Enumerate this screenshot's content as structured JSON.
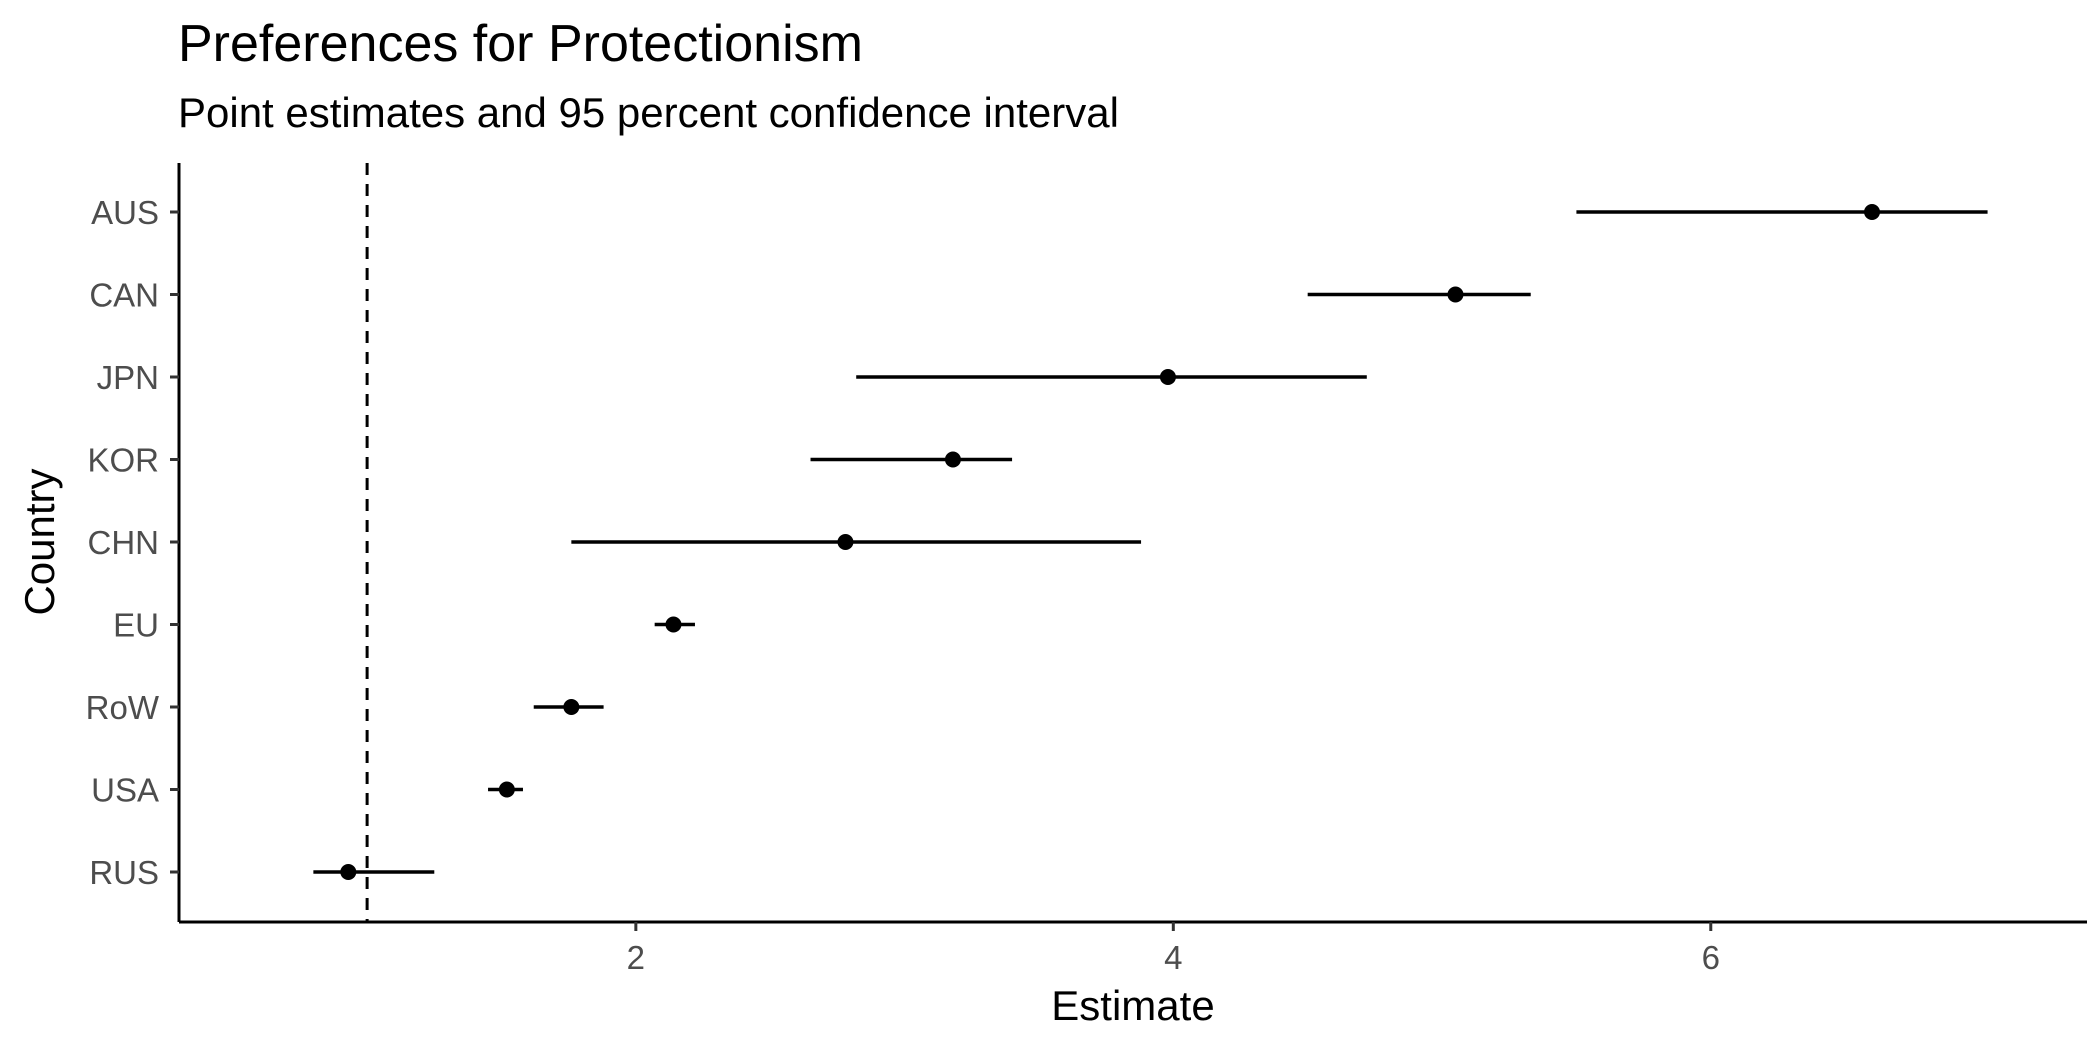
{
  "chart_data": {
    "type": "scatter",
    "title": "Preferences for Protectionism",
    "subtitle": "Point estimates and 95 percent confidence interval",
    "xlabel": "Estimate",
    "ylabel": "Country",
    "xlim": [
      0.3,
      7.4
    ],
    "x_ticks": [
      2,
      4,
      6
    ],
    "x_tick_labels": [
      "2",
      "4",
      "6"
    ],
    "reference_line": 1,
    "categories": [
      "AUS",
      "CAN",
      "JPN",
      "KOR",
      "CHN",
      "EU",
      "RoW",
      "USA",
      "RUS"
    ],
    "series": [
      {
        "estimates": [
          6.6,
          5.05,
          3.98,
          3.18,
          2.78,
          2.14,
          1.76,
          1.52,
          0.93
        ],
        "ci_low": [
          5.5,
          4.5,
          2.82,
          2.65,
          1.76,
          2.07,
          1.62,
          1.45,
          0.8
        ],
        "ci_high": [
          7.03,
          5.33,
          4.72,
          3.4,
          3.88,
          2.22,
          1.88,
          1.58,
          1.25
        ]
      }
    ],
    "grid": false,
    "legend": "none",
    "colors": {
      "point": "#000000",
      "errorbar": "#000000",
      "reference_line": "#000000",
      "tick_text": "#4d4d4d"
    }
  }
}
